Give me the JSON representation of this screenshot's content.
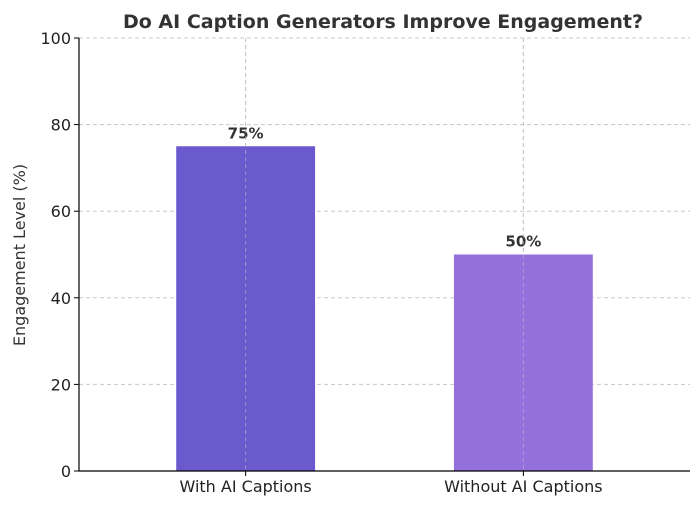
{
  "chart_data": {
    "type": "bar",
    "title": "Do AI Caption Generators Improve Engagement?",
    "xlabel": "",
    "ylabel": "Engagement Level (%)",
    "ylim": [
      0,
      100
    ],
    "yticks": [
      0,
      20,
      40,
      60,
      80,
      100
    ],
    "categories": [
      "With AI Captions",
      "Without AI Captions"
    ],
    "values": [
      75,
      50
    ],
    "data_labels": [
      "75%",
      "50%"
    ],
    "colors": [
      "#6a5acd",
      "#9370db"
    ],
    "grid": true,
    "legend": "none"
  }
}
